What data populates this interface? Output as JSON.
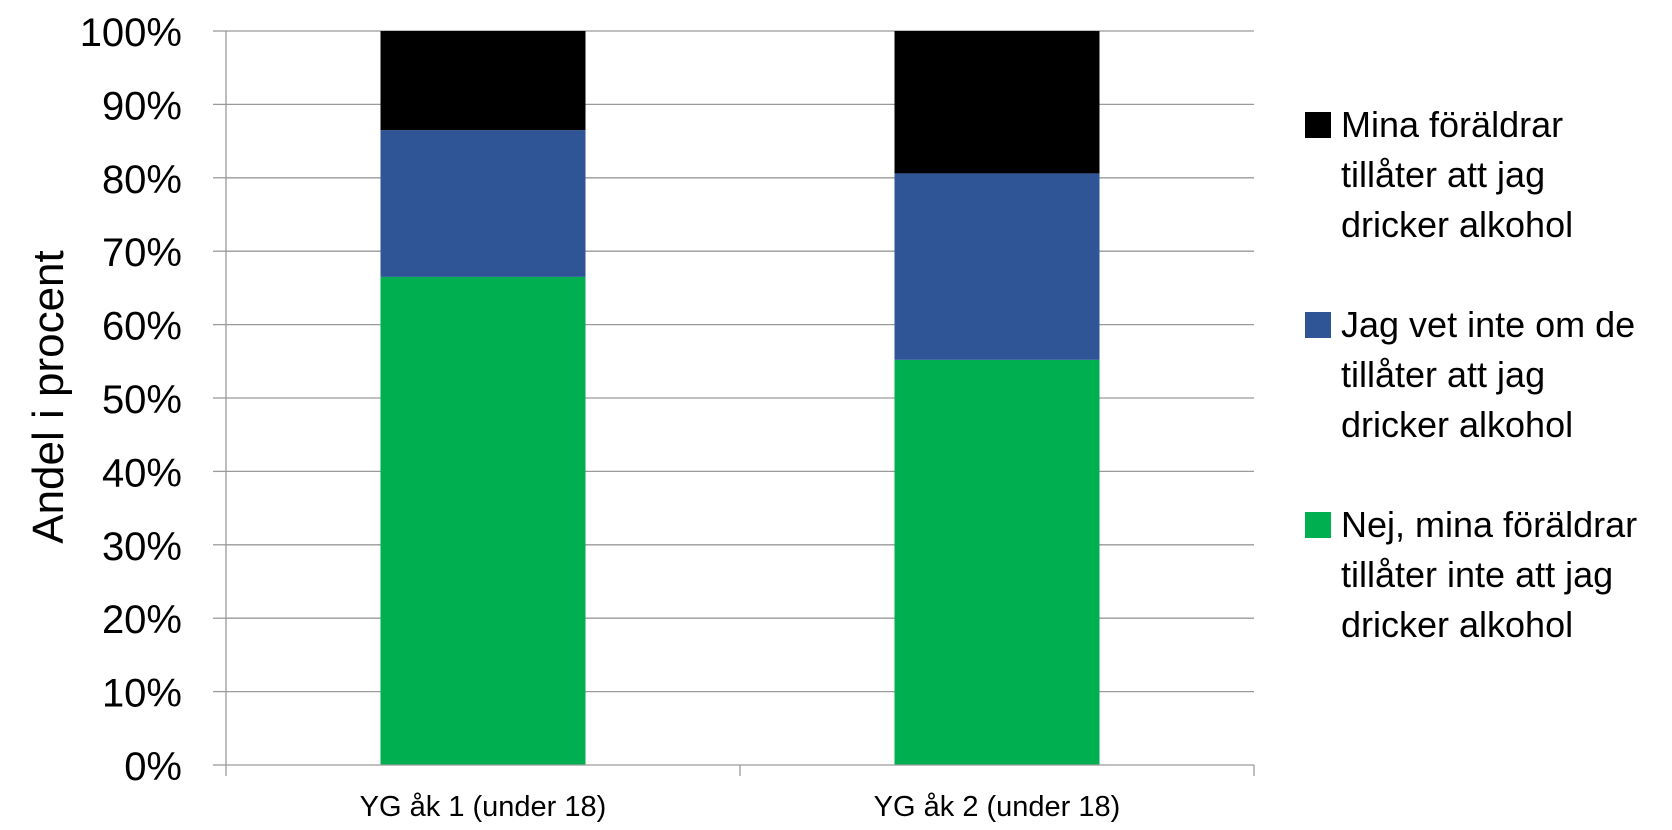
{
  "chart_data": {
    "type": "bar",
    "stacked": true,
    "categories": [
      "YG åk 1 (under 18)",
      "YG åk 2 (under 18)"
    ],
    "ylabel": "Andel i procent",
    "ylim": [
      0,
      100
    ],
    "ytick_labels": [
      "0%",
      "10%",
      "20%",
      "30%",
      "40%",
      "50%",
      "60%",
      "70%",
      "80%",
      "90%",
      "100%"
    ],
    "grid": true,
    "legend_position": "right",
    "series": [
      {
        "name": "Nej, mina föräldrar tillåter inte att jag dricker alkohol",
        "color": "#00b050",
        "values": [
          66.5,
          55.2
        ]
      },
      {
        "name": "Jag vet inte om de tillåter att jag dricker alkohol",
        "color": "#2f5597",
        "values": [
          20.0,
          25.4
        ]
      },
      {
        "name": "Mina föräldrar tillåter att jag dricker alkohol",
        "color": "#000000",
        "values": [
          13.5,
          19.4
        ]
      }
    ]
  },
  "legend": {
    "items": [
      {
        "label": "Mina föräldrar tillåter att jag dricker alkohol",
        "color": "#000000"
      },
      {
        "label": "Jag vet inte om de tillåter att jag dricker alkohol",
        "color": "#2f5597"
      },
      {
        "label": "Nej, mina föräldrar tillåter inte att jag dricker alkohol",
        "color": "#00b050"
      }
    ]
  }
}
